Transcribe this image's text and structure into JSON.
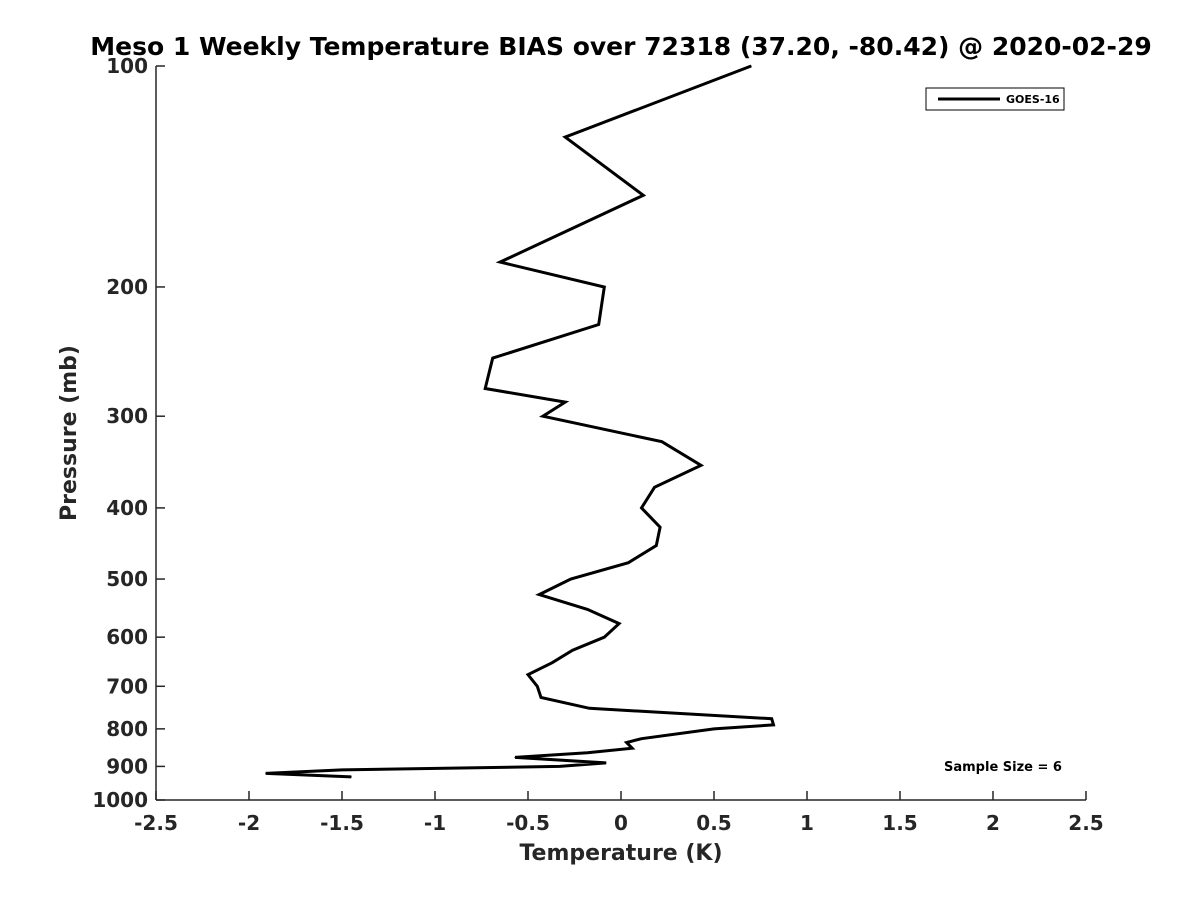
{
  "chart_data": {
    "type": "line",
    "title": "Meso 1 Weekly Temperature BIAS over 72318 (37.20, -80.42) @ 2020-02-29",
    "xlabel": "Temperature (K)",
    "ylabel": "Pressure (mb)",
    "xlim": [
      -2.5,
      2.5
    ],
    "ylim": [
      100,
      1000
    ],
    "y_scale": "log",
    "y_reversed": true,
    "x_ticks": [
      -2.5,
      -2,
      -1.5,
      -1,
      -0.5,
      0,
      0.5,
      1,
      1.5,
      2,
      2.5
    ],
    "x_tick_labels": [
      "-2.5",
      "-2",
      "-1.5",
      "-1",
      "-0.5",
      "0",
      "0.5",
      "1",
      "1.5",
      "2",
      "2.5"
    ],
    "y_ticks": [
      100,
      200,
      300,
      400,
      500,
      600,
      700,
      800,
      900,
      1000
    ],
    "y_tick_labels": [
      "100",
      "200",
      "300",
      "400",
      "500",
      "600",
      "700",
      "800",
      "900",
      "1000"
    ],
    "grid": false,
    "legend_position": "top-right",
    "annotation": "Sample Size = 6",
    "series": [
      {
        "name": "GOES-16",
        "color": "#000000",
        "points": [
          {
            "x": 0.7,
            "y": 100
          },
          {
            "x": -0.3,
            "y": 125
          },
          {
            "x": 0.12,
            "y": 150
          },
          {
            "x": -0.65,
            "y": 185
          },
          {
            "x": -0.09,
            "y": 200
          },
          {
            "x": -0.12,
            "y": 225
          },
          {
            "x": -0.69,
            "y": 250
          },
          {
            "x": -0.73,
            "y": 275
          },
          {
            "x": -0.3,
            "y": 287
          },
          {
            "x": -0.42,
            "y": 300
          },
          {
            "x": 0.22,
            "y": 325
          },
          {
            "x": 0.43,
            "y": 350
          },
          {
            "x": 0.18,
            "y": 375
          },
          {
            "x": 0.11,
            "y": 400
          },
          {
            "x": 0.21,
            "y": 425
          },
          {
            "x": 0.19,
            "y": 450
          },
          {
            "x": 0.04,
            "y": 475
          },
          {
            "x": -0.27,
            "y": 500
          },
          {
            "x": -0.44,
            "y": 525
          },
          {
            "x": -0.18,
            "y": 550
          },
          {
            "x": -0.01,
            "y": 575
          },
          {
            "x": -0.09,
            "y": 600
          },
          {
            "x": -0.26,
            "y": 625
          },
          {
            "x": -0.37,
            "y": 650
          },
          {
            "x": -0.5,
            "y": 675
          },
          {
            "x": -0.45,
            "y": 700
          },
          {
            "x": -0.43,
            "y": 725
          },
          {
            "x": -0.17,
            "y": 750
          },
          {
            "x": 0.81,
            "y": 775
          },
          {
            "x": 0.82,
            "y": 790
          },
          {
            "x": 0.5,
            "y": 800
          },
          {
            "x": 0.11,
            "y": 825
          },
          {
            "x": 0.03,
            "y": 835
          },
          {
            "x": 0.06,
            "y": 850
          },
          {
            "x": -0.18,
            "y": 862
          },
          {
            "x": -0.57,
            "y": 875
          },
          {
            "x": -0.08,
            "y": 890
          },
          {
            "x": -0.33,
            "y": 900
          },
          {
            "x": -1.5,
            "y": 910
          },
          {
            "x": -1.91,
            "y": 920
          },
          {
            "x": -1.45,
            "y": 930
          }
        ]
      }
    ]
  }
}
